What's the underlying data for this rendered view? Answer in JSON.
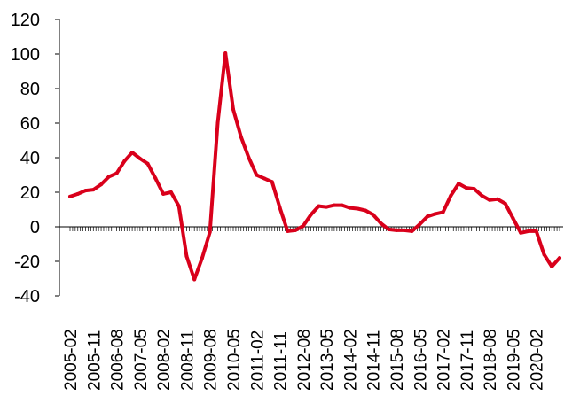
{
  "chart_data": {
    "type": "line",
    "title": "",
    "xlabel": "",
    "ylabel": "",
    "ylim": [
      -40,
      120
    ],
    "yticks": [
      -40,
      -20,
      0,
      20,
      40,
      60,
      80,
      100,
      120
    ],
    "xlim": [
      "2005-02",
      "2020-11"
    ],
    "xtick_labels": [
      "2005-02",
      "2005-11",
      "2006-08",
      "2007-05",
      "2008-02",
      "2008-11",
      "2009-08",
      "2010-05",
      "2011-02",
      "2011-11",
      "2012-08",
      "2013-05",
      "2014-02",
      "2014-11",
      "2015-08",
      "2016-05",
      "2017-02",
      "2017-11",
      "2018-08",
      "2019-05",
      "2020-02"
    ],
    "grid": false,
    "legend": "none",
    "line_color": "#d9001b",
    "series": [
      {
        "x": [
          "2005-02",
          "2005-05",
          "2005-08",
          "2005-11",
          "2006-02",
          "2006-05",
          "2006-08",
          "2006-11",
          "2007-02",
          "2007-05",
          "2007-08",
          "2007-11",
          "2008-02",
          "2008-05",
          "2008-08",
          "2008-11",
          "2009-02",
          "2009-05",
          "2009-08",
          "2009-11",
          "2010-02",
          "2010-05",
          "2010-08",
          "2010-11",
          "2011-02",
          "2011-05",
          "2011-08",
          "2011-11",
          "2012-02",
          "2012-05",
          "2012-08",
          "2012-11",
          "2013-02",
          "2013-05",
          "2013-08",
          "2013-11",
          "2014-02",
          "2014-05",
          "2014-08",
          "2014-11",
          "2015-02",
          "2015-05",
          "2015-08",
          "2015-11",
          "2016-02",
          "2016-05",
          "2016-08",
          "2016-11",
          "2017-02",
          "2017-05",
          "2017-08",
          "2017-11",
          "2018-02",
          "2018-05",
          "2018-08",
          "2018-11",
          "2019-02",
          "2019-05",
          "2019-08",
          "2019-11",
          "2020-02",
          "2020-05",
          "2020-08",
          "2020-11"
        ],
        "values": [
          17.5,
          19,
          21,
          21.5,
          24.5,
          29,
          31,
          38,
          43,
          39.5,
          36.5,
          28,
          19,
          20,
          12,
          -17,
          -30.5,
          -18,
          -3,
          60,
          100.5,
          68,
          52,
          40,
          30,
          28,
          26,
          11,
          -2.5,
          -2,
          0.5,
          7,
          12,
          11.5,
          12.5,
          12.5,
          11,
          10.5,
          9.5,
          7,
          2,
          -1.5,
          -2,
          -2,
          -2.5,
          1.5,
          6,
          7.5,
          8.5,
          18,
          25,
          22.5,
          22,
          18,
          15.5,
          16,
          13.5,
          5,
          -3.5,
          -2.5,
          -2.5,
          -16,
          -23,
          -18
        ]
      }
    ]
  }
}
